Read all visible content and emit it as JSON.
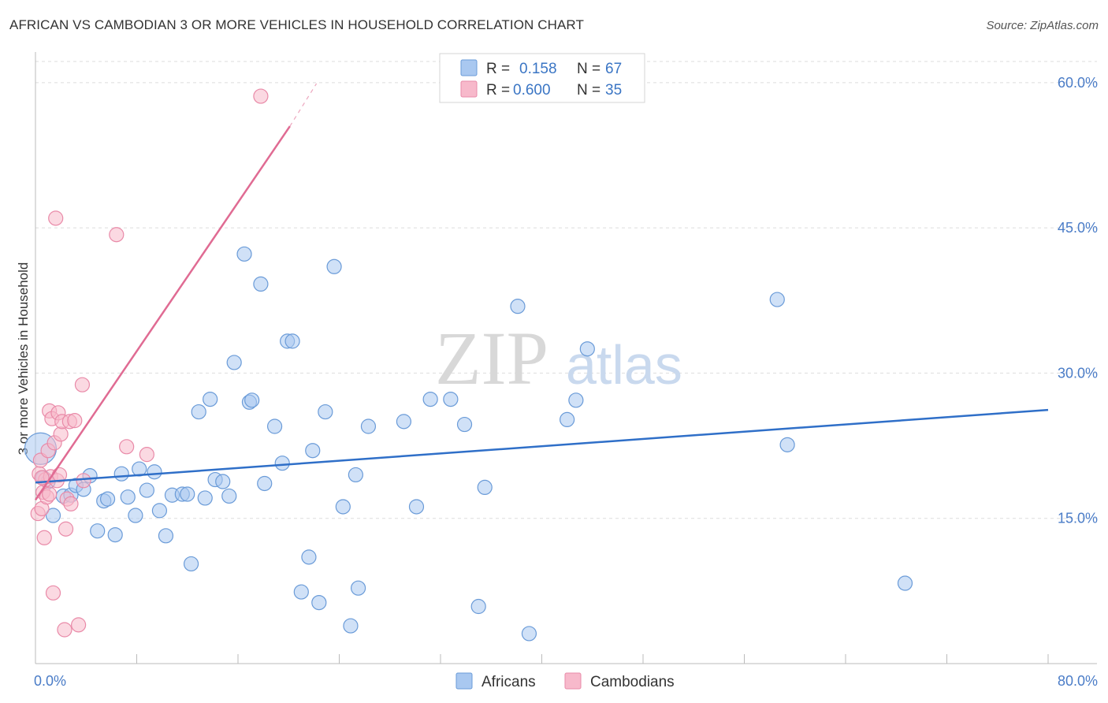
{
  "header": {
    "title": "AFRICAN VS CAMBODIAN 3 OR MORE VEHICLES IN HOUSEHOLD CORRELATION CHART",
    "source": "Source: ZipAtlas.com"
  },
  "watermark": {
    "zip": "ZIP",
    "atlas": "atlas"
  },
  "colors": {
    "africans_fill": "#a9c8f0",
    "africans_stroke": "#6a9bd8",
    "africans_line": "#2f6fc8",
    "cambodians_fill": "#f7b9cb",
    "cambodians_stroke": "#e98aa8",
    "cambodians_line": "#e06b93",
    "grid": "#dddddd",
    "value_text": "#3a75c4"
  },
  "legend": {
    "africans": {
      "r_label": "R =",
      "r_value": "0.158",
      "n_label": "N =",
      "n_value": "67"
    },
    "cambodians": {
      "r_label": "R =",
      "r_value": "0.600",
      "n_label": "N =",
      "n_value": "35"
    }
  },
  "chart_data": {
    "type": "scatter",
    "title": "AFRICAN VS CAMBODIAN 3 OR MORE VEHICLES IN HOUSEHOLD CORRELATION CHART",
    "xlabel": "",
    "ylabel": "3 or more Vehicles in Household",
    "xlim": [
      0,
      80
    ],
    "ylim": [
      0,
      63
    ],
    "x_tick_labels": [
      {
        "value": 0,
        "label": "0.0%"
      },
      {
        "value": 80,
        "label": "80.0%"
      }
    ],
    "y_tick_labels": [
      {
        "value": 15,
        "label": "15.0%"
      },
      {
        "value": 30,
        "label": "30.0%"
      },
      {
        "value": 45,
        "label": "45.0%"
      },
      {
        "value": 60,
        "label": "60.0%"
      }
    ],
    "grid": true,
    "legend_position": "top-center",
    "series": [
      {
        "name": "Africans",
        "r": 0.158,
        "n": 67,
        "trend": {
          "x": [
            0,
            80
          ],
          "y": [
            18.7,
            26.2
          ]
        },
        "points": [
          {
            "x": 0.4,
            "y": 22.2,
            "size": "large"
          },
          {
            "x": 0.6,
            "y": 19.2
          },
          {
            "x": 1.0,
            "y": 18.8
          },
          {
            "x": 1.4,
            "y": 15.3
          },
          {
            "x": 2.2,
            "y": 17.3
          },
          {
            "x": 2.8,
            "y": 17.4
          },
          {
            "x": 3.2,
            "y": 18.4
          },
          {
            "x": 3.8,
            "y": 18.0
          },
          {
            "x": 4.3,
            "y": 19.4
          },
          {
            "x": 4.9,
            "y": 13.7
          },
          {
            "x": 5.4,
            "y": 16.8
          },
          {
            "x": 5.7,
            "y": 17.0
          },
          {
            "x": 6.3,
            "y": 13.3
          },
          {
            "x": 6.8,
            "y": 19.6
          },
          {
            "x": 7.3,
            "y": 17.2
          },
          {
            "x": 7.9,
            "y": 15.3
          },
          {
            "x": 8.2,
            "y": 20.1
          },
          {
            "x": 8.8,
            "y": 17.9
          },
          {
            "x": 9.4,
            "y": 19.8
          },
          {
            "x": 9.8,
            "y": 15.8
          },
          {
            "x": 10.3,
            "y": 13.2
          },
          {
            "x": 10.8,
            "y": 17.4
          },
          {
            "x": 11.6,
            "y": 17.5
          },
          {
            "x": 12.0,
            "y": 17.5
          },
          {
            "x": 12.3,
            "y": 10.3
          },
          {
            "x": 12.9,
            "y": 26.0
          },
          {
            "x": 13.4,
            "y": 17.1
          },
          {
            "x": 13.8,
            "y": 27.3
          },
          {
            "x": 14.2,
            "y": 19.0
          },
          {
            "x": 14.8,
            "y": 18.8
          },
          {
            "x": 15.3,
            "y": 17.3
          },
          {
            "x": 15.7,
            "y": 31.1
          },
          {
            "x": 16.5,
            "y": 42.3
          },
          {
            "x": 16.9,
            "y": 27.0
          },
          {
            "x": 17.1,
            "y": 27.2
          },
          {
            "x": 17.8,
            "y": 39.2
          },
          {
            "x": 18.1,
            "y": 18.6
          },
          {
            "x": 18.9,
            "y": 24.5
          },
          {
            "x": 19.5,
            "y": 20.7
          },
          {
            "x": 19.9,
            "y": 33.3
          },
          {
            "x": 20.3,
            "y": 33.3
          },
          {
            "x": 21.0,
            "y": 7.4
          },
          {
            "x": 21.6,
            "y": 11.0
          },
          {
            "x": 21.9,
            "y": 22.0
          },
          {
            "x": 22.4,
            "y": 6.3
          },
          {
            "x": 22.9,
            "y": 26.0
          },
          {
            "x": 23.6,
            "y": 41.0
          },
          {
            "x": 24.3,
            "y": 16.2
          },
          {
            "x": 24.9,
            "y": 3.9
          },
          {
            "x": 25.3,
            "y": 19.5
          },
          {
            "x": 25.5,
            "y": 7.8
          },
          {
            "x": 26.3,
            "y": 24.5
          },
          {
            "x": 29.1,
            "y": 25.0
          },
          {
            "x": 30.1,
            "y": 16.2
          },
          {
            "x": 31.2,
            "y": 27.3
          },
          {
            "x": 32.8,
            "y": 27.3
          },
          {
            "x": 33.9,
            "y": 24.7
          },
          {
            "x": 35.0,
            "y": 5.9
          },
          {
            "x": 35.5,
            "y": 18.2
          },
          {
            "x": 38.1,
            "y": 36.9
          },
          {
            "x": 39.0,
            "y": 3.1
          },
          {
            "x": 42.0,
            "y": 25.2
          },
          {
            "x": 42.7,
            "y": 27.2
          },
          {
            "x": 43.6,
            "y": 32.5
          },
          {
            "x": 58.6,
            "y": 37.6
          },
          {
            "x": 59.4,
            "y": 22.6
          },
          {
            "x": 68.7,
            "y": 8.3
          }
        ]
      },
      {
        "name": "Cambodians",
        "r": 0.6,
        "n": 35,
        "trend": {
          "x": [
            0,
            20.1
          ],
          "y": [
            16.9,
            55.5
          ],
          "dashed_to": {
            "x": 22.2,
            "y": 59.9
          }
        },
        "points": [
          {
            "x": 0.2,
            "y": 15.5
          },
          {
            "x": 0.3,
            "y": 19.6
          },
          {
            "x": 0.4,
            "y": 21.0
          },
          {
            "x": 0.5,
            "y": 16.0
          },
          {
            "x": 0.6,
            "y": 17.7
          },
          {
            "x": 0.7,
            "y": 13.0
          },
          {
            "x": 0.8,
            "y": 19.0
          },
          {
            "x": 0.9,
            "y": 17.2
          },
          {
            "x": 1.0,
            "y": 22.0
          },
          {
            "x": 1.1,
            "y": 26.1
          },
          {
            "x": 1.2,
            "y": 19.3
          },
          {
            "x": 1.3,
            "y": 25.3
          },
          {
            "x": 1.4,
            "y": 7.3
          },
          {
            "x": 1.5,
            "y": 22.8
          },
          {
            "x": 1.6,
            "y": 46.0
          },
          {
            "x": 1.7,
            "y": 18.9
          },
          {
            "x": 1.8,
            "y": 25.9
          },
          {
            "x": 1.9,
            "y": 19.5
          },
          {
            "x": 2.0,
            "y": 23.7
          },
          {
            "x": 2.1,
            "y": 25.0
          },
          {
            "x": 2.3,
            "y": 3.5
          },
          {
            "x": 2.4,
            "y": 13.9
          },
          {
            "x": 2.5,
            "y": 17.0
          },
          {
            "x": 2.7,
            "y": 25.0
          },
          {
            "x": 2.8,
            "y": 16.5
          },
          {
            "x": 3.1,
            "y": 25.1
          },
          {
            "x": 3.4,
            "y": 4.0
          },
          {
            "x": 3.7,
            "y": 28.8
          },
          {
            "x": 3.8,
            "y": 18.9
          },
          {
            "x": 6.4,
            "y": 44.3
          },
          {
            "x": 7.2,
            "y": 22.4
          },
          {
            "x": 8.8,
            "y": 21.6
          },
          {
            "x": 17.8,
            "y": 58.6
          },
          {
            "x": 0.5,
            "y": 19.2
          },
          {
            "x": 1.1,
            "y": 17.5
          }
        ]
      }
    ]
  },
  "bottom_legend": {
    "africans": "Africans",
    "cambodians": "Cambodians"
  }
}
